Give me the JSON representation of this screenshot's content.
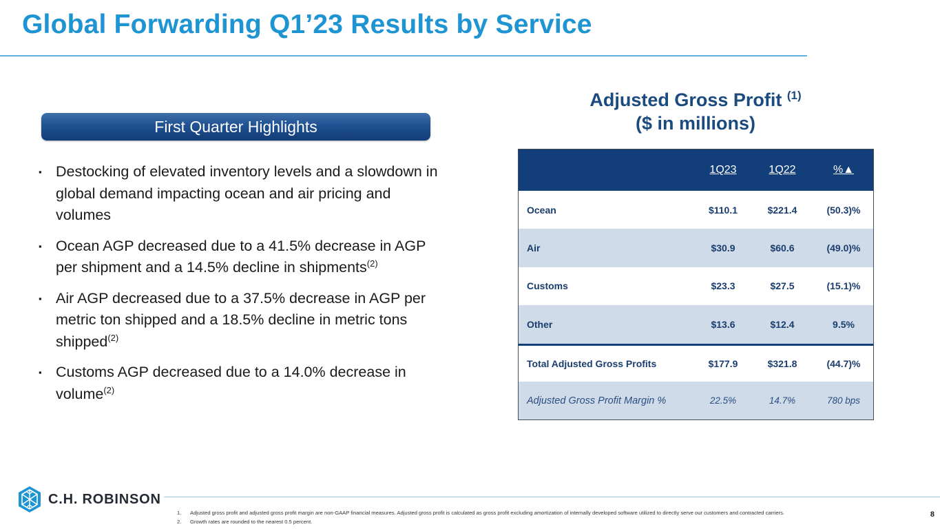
{
  "title": "Global Forwarding Q1’23 Results by Service",
  "highlights_label": "First Quarter Highlights",
  "bullet_mark": "▪",
  "bullets": [
    {
      "text": "Destocking of elevated inventory levels and a slowdown in global demand impacting ocean and air pricing and volumes",
      "note": ""
    },
    {
      "text": "Ocean AGP decreased due to a 41.5% decrease in AGP per shipment and a 14.5% decline in shipments",
      "note": "(2)"
    },
    {
      "text": "Air AGP decreased due to a 37.5% decrease in AGP per metric ton shipped and a 18.5% decline in metric tons shipped",
      "note": "(2)"
    },
    {
      "text": "Customs AGP decreased due to a 14.0% decrease in volume",
      "note": "(2)"
    }
  ],
  "table_title": {
    "line1": "Adjusted Gross Profit",
    "note": "(1)",
    "line2": "($ in millions)"
  },
  "table": {
    "headers": [
      "",
      "1Q23",
      "1Q22",
      "%▲"
    ],
    "rows": [
      {
        "label": "Ocean",
        "q123": "$110.1",
        "q122": "$221.4",
        "change": "(50.3)%"
      },
      {
        "label": "Air",
        "q123": "$30.9",
        "q122": "$60.6",
        "change": "(49.0)%"
      },
      {
        "label": "Customs",
        "q123": "$23.3",
        "q122": "$27.5",
        "change": "(15.1)%"
      },
      {
        "label": "Other",
        "q123": "$13.6",
        "q122": "$12.4",
        "change": "9.5%"
      },
      {
        "label": "Total Adjusted Gross Profits",
        "q123": "$177.9",
        "q122": "$321.8",
        "change": "(44.7)%"
      },
      {
        "label": "Adjusted Gross Profit Margin %",
        "q123": "22.5%",
        "q122": "14.7%",
        "change": "780 bps"
      }
    ]
  },
  "logo_text": "C.H. ROBINSON",
  "footnotes": [
    {
      "num": "1.",
      "text": "Adjusted gross profit and adjusted gross profit margin are non-GAAP financial measures. Adjusted gross profit is calculated as gross profit excluding amortization of internally developed software utilized to directly serve our customers and contracted carriers."
    },
    {
      "num": "2.",
      "text": "Growth rates are rounded to the nearest 0.5 percent."
    }
  ],
  "page_number": "8",
  "colors": {
    "title": "#1e94d2",
    "navy": "#123f7a",
    "shade": "#cfdbe8"
  }
}
